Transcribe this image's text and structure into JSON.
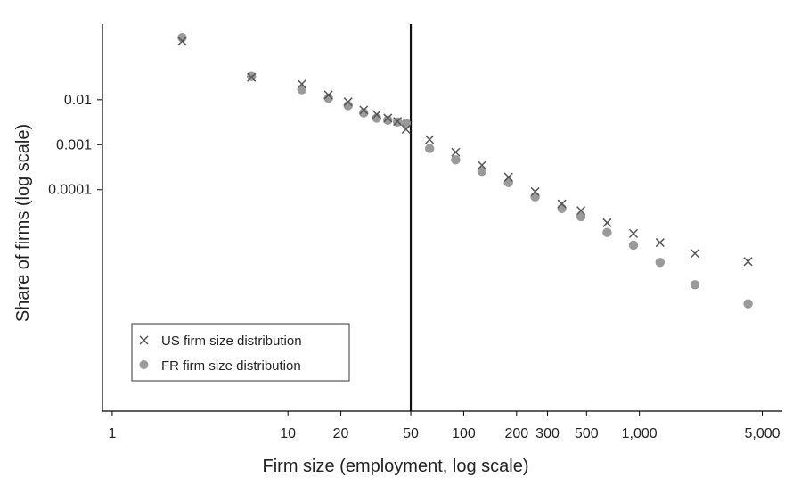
{
  "chart_data": {
    "type": "scatter",
    "xlabel": "Firm size (employment, log scale)",
    "ylabel": "Share of firms (log scale)",
    "x_scale": "log",
    "y_scale": "log",
    "xlim": [
      0.88,
      6500
    ],
    "ylim": [
      1.2e-09,
      0.48
    ],
    "x_ticks": [
      {
        "value": 1,
        "label": "1"
      },
      {
        "value": 10,
        "label": "10"
      },
      {
        "value": 20,
        "label": "20"
      },
      {
        "value": 50,
        "label": "50"
      },
      {
        "value": 100,
        "label": "100"
      },
      {
        "value": 200,
        "label": "200"
      },
      {
        "value": 300,
        "label": "300"
      },
      {
        "value": 500,
        "label": "500"
      },
      {
        "value": 1000,
        "label": "1,000"
      },
      {
        "value": 5000,
        "label": "5,000"
      }
    ],
    "y_ticks": [
      {
        "value": 0.01,
        "label": "0.01"
      },
      {
        "value": 0.001,
        "label": "0.001"
      },
      {
        "value": 0.0001,
        "label": "0.0001"
      }
    ],
    "reference_line_x": 50,
    "legend_position": "bottom-left",
    "series": [
      {
        "name": "US firm size distribution",
        "marker": "x",
        "color": "#555555",
        "x": [
          2.5,
          6.2,
          12,
          17,
          22,
          27,
          32,
          37,
          42,
          47,
          64,
          90,
          127,
          180,
          255,
          362,
          465,
          655,
          925,
          1310,
          2070,
          4150
        ],
        "y": [
          0.2,
          0.0315,
          0.0224,
          0.0128,
          0.00898,
          0.0059,
          0.0047,
          0.0039,
          0.0033,
          0.0022,
          0.0013,
          0.00068,
          0.00035,
          0.00019,
          9.05e-05,
          4.86e-05,
          3.44e-05,
          1.84e-05,
          1.06e-05,
          6.67e-06,
          3.82e-06,
          2.53e-06
        ]
      },
      {
        "name": "FR firm size distribution",
        "marker": "circle",
        "color": "#9a9a9a",
        "x": [
          2.5,
          6.2,
          12,
          17,
          22,
          27,
          32,
          37,
          42,
          47,
          64,
          90,
          127,
          180,
          255,
          362,
          465,
          655,
          925,
          1310,
          2070,
          4150
        ],
        "y": [
          0.24,
          0.033,
          0.0167,
          0.0108,
          0.0074,
          0.0051,
          0.0039,
          0.0035,
          0.0032,
          0.003,
          0.00082,
          0.00046,
          0.000257,
          0.000144,
          6.9e-05,
          3.83e-05,
          2.52e-05,
          1.12e-05,
          5.85e-06,
          2.42e-06,
          7.73e-07,
          2.9e-07
        ]
      }
    ]
  }
}
